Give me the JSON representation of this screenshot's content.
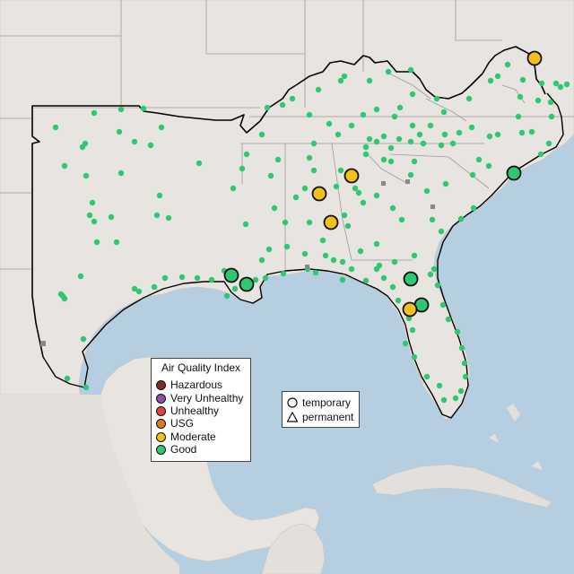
{
  "colors": {
    "water": "#b5cfe0",
    "land_us": "#e8e4e0",
    "land_other": "#e3dfda",
    "state_border": "#9a9a9a",
    "region_border": "#000000",
    "hazardous": "#7e2b24",
    "very_unhealthy": "#8e4fa6",
    "unhealthy": "#e0413a",
    "usg": "#e0781c",
    "moderate": "#f2c01a",
    "good": "#2ec872"
  },
  "aqi_legend": {
    "title": "Air Quality Index",
    "items": [
      {
        "label": "Hazardous",
        "color": "#7e2b24"
      },
      {
        "label": "Very Unhealthy",
        "color": "#8e4fa6"
      },
      {
        "label": "Unhealthy",
        "color": "#e0413a"
      },
      {
        "label": "USG",
        "color": "#e0781c"
      },
      {
        "label": "Moderate",
        "color": "#f2c01a"
      },
      {
        "label": "Good",
        "color": "#2ec872"
      }
    ]
  },
  "monitor_type_legend": {
    "items": [
      {
        "label": "temporary",
        "icon": "circle-icon"
      },
      {
        "label": "permanent",
        "icon": "triangle-icon"
      }
    ]
  }
}
